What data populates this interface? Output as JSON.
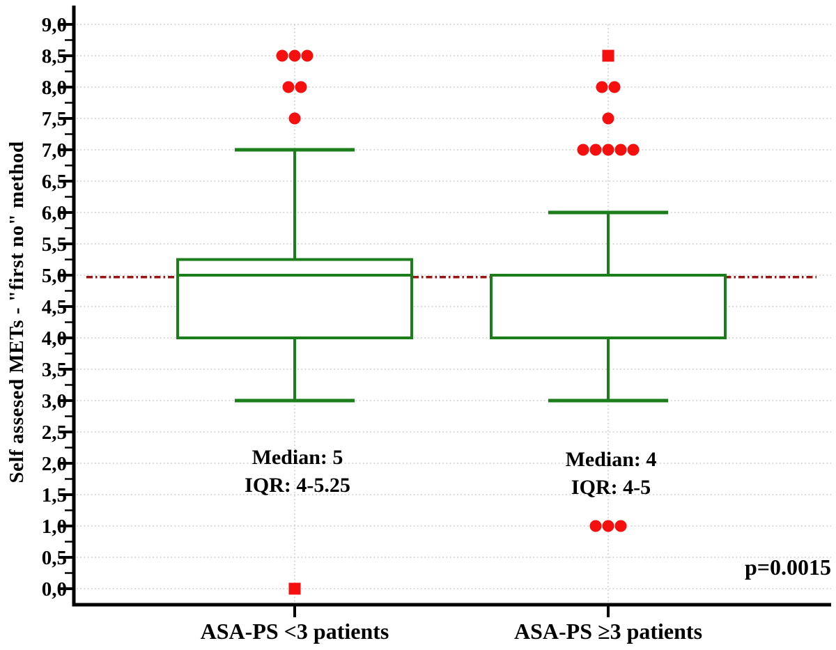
{
  "chart_data": {
    "type": "boxplot",
    "title": "",
    "ylabel": "Self assesed METs - \"first no\" method",
    "xlabel": "",
    "ylim": [
      0,
      9
    ],
    "ytick_step": 0.5,
    "ytick_minor_step": 0.25,
    "decimal_separator": ",",
    "ytick_labels": [
      "0,0",
      "0,5",
      "1,0",
      "1,5",
      "2,0",
      "2,5",
      "3,0",
      "3,5",
      "4,0",
      "4,5",
      "5,0",
      "5,5",
      "6,0",
      "6,5",
      "7,0",
      "7,5",
      "8,0",
      "8,5",
      "9,0"
    ],
    "grid": "dotted horizontal at every 0.5 plus vertical dotted line at each category center",
    "reference_line_y": 4.97,
    "p_value": "p=0.0015",
    "groups": [
      {
        "label": "ASA-PS <3 patients",
        "median": 5,
        "q1": 4,
        "q3": 5.25,
        "whisker_low": 3,
        "whisker_high": 7,
        "outliers": [
          {
            "value": 8.5,
            "count": 3,
            "marker": "circle"
          },
          {
            "value": 8.0,
            "count": 2,
            "marker": "circle"
          },
          {
            "value": 7.5,
            "count": 1,
            "marker": "circle"
          },
          {
            "value": 0.0,
            "count": 1,
            "marker": "square"
          }
        ],
        "annotation_median": "Median: 5",
        "annotation_iqr": "IQR: 4-5.25"
      },
      {
        "label": "ASA-PS ≥3 patients",
        "median": 4,
        "q1": 4,
        "q3": 5,
        "whisker_low": 3,
        "whisker_high": 6,
        "outliers": [
          {
            "value": 8.5,
            "count": 1,
            "marker": "square"
          },
          {
            "value": 8.0,
            "count": 2,
            "marker": "circle"
          },
          {
            "value": 7.5,
            "count": 1,
            "marker": "circle"
          },
          {
            "value": 7.0,
            "count": 5,
            "marker": "circle"
          },
          {
            "value": 1.0,
            "count": 3,
            "marker": "circle"
          }
        ],
        "annotation_median": "Median: 4",
        "annotation_iqr": "IQR: 4-5"
      }
    ],
    "colors": {
      "box_stroke": "#1b7e1b",
      "box_fill": "#ffffff",
      "outlier": "#f50f0f",
      "reference_line": "#9b1414",
      "grid": "#cbcbcb",
      "axis": "#000000",
      "text": "#000000"
    },
    "legend": "none"
  }
}
